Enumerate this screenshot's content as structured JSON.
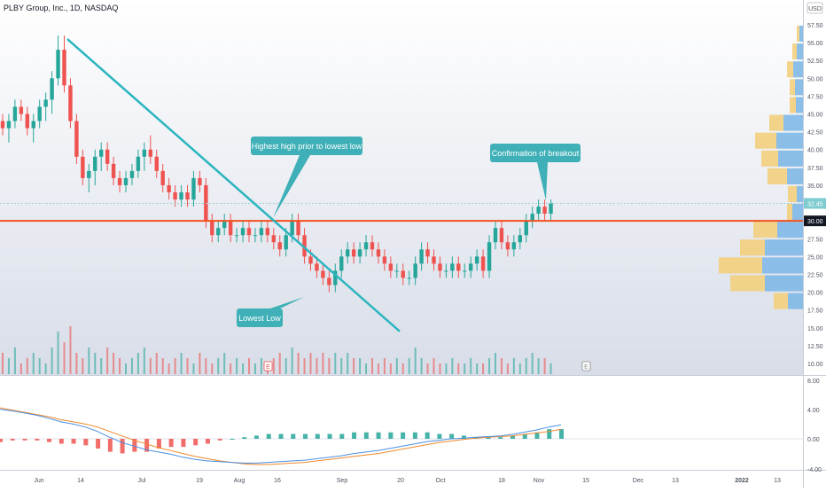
{
  "header": {
    "title": "PLBY Group, Inc., 1D, NASDAQ",
    "currency": "USD"
  },
  "colors": {
    "up": "#26a69a",
    "down": "#ef5350",
    "trendline": "#2bb5bf",
    "horizontal_line": "#f4511e",
    "current_price_line": "#9fd4d7",
    "callout_bg": "#3fb0b7",
    "vp_up": "#7fb8e6",
    "vp_down": "#f3cf7d",
    "macd_line": "#4a90e2",
    "signal_line": "#f0892b"
  },
  "price_axis": {
    "labels": [
      "57.50",
      "55.00",
      "52.50",
      "50.00",
      "47.50",
      "45.00",
      "42.50",
      "40.00",
      "37.50",
      "35.00",
      "32.50",
      "30.00",
      "27.50",
      "25.00",
      "22.50",
      "20.00",
      "17.50",
      "15.00",
      "12.50",
      "10.00"
    ],
    "current_price": "32.45",
    "level_price": "30.00"
  },
  "indicator_axis": {
    "labels": [
      "8.00",
      "4.00",
      "0.00",
      "-4.00"
    ]
  },
  "time_axis": {
    "labels": [
      "Jun",
      "14",
      "Jul",
      "19",
      "Aug",
      "16",
      "Sep",
      "20",
      "Oct",
      "18",
      "Nov",
      "15",
      "Dec",
      "13",
      "2022",
      "13"
    ]
  },
  "annotations": {
    "high_callout": "Highest high prior to lowest low",
    "low_callout": "Lowest Low",
    "breakout_callout": "Confirmation of breakout"
  },
  "markers": {
    "earnings": "E",
    "dividend": "E"
  },
  "chart_data": {
    "type": "candlestick",
    "title": "PLBY Group, Inc., 1D, NASDAQ",
    "y_unit": "USD",
    "ylim": [
      10,
      58
    ],
    "trendline": {
      "start": {
        "date": "2021-06-10",
        "price": 55.5
      },
      "end": {
        "date": "2021-09-16",
        "price": 14.5
      }
    },
    "horizontal_level": 30.0,
    "current_price": 32.45,
    "candles": [
      [
        44,
        45,
        42,
        43
      ],
      [
        43,
        45,
        41,
        44
      ],
      [
        44,
        47,
        43,
        46
      ],
      [
        46,
        47,
        44,
        45
      ],
      [
        45,
        46,
        42,
        43
      ],
      [
        43,
        45,
        41,
        44
      ],
      [
        44,
        47,
        43,
        46
      ],
      [
        46,
        48,
        44,
        47
      ],
      [
        47,
        51,
        45,
        50
      ],
      [
        50,
        56,
        49,
        54
      ],
      [
        54,
        56,
        48,
        49
      ],
      [
        49,
        50,
        43,
        44
      ],
      [
        44,
        45,
        38,
        39
      ],
      [
        39,
        40,
        35,
        36
      ],
      [
        36,
        38,
        34,
        37
      ],
      [
        37,
        40,
        35,
        39
      ],
      [
        39,
        41,
        37,
        40
      ],
      [
        40,
        41,
        37,
        38
      ],
      [
        38,
        39,
        35,
        36
      ],
      [
        36,
        37,
        34,
        35
      ],
      [
        35,
        37,
        34,
        36
      ],
      [
        36,
        38,
        35,
        37
      ],
      [
        37,
        40,
        36,
        39
      ],
      [
        39,
        41,
        37,
        40
      ],
      [
        40,
        42,
        38,
        39
      ],
      [
        39,
        40,
        36,
        37
      ],
      [
        37,
        38,
        34,
        35
      ],
      [
        35,
        36,
        33,
        34
      ],
      [
        34,
        35,
        32,
        33
      ],
      [
        33,
        35,
        32,
        34
      ],
      [
        34,
        35,
        32,
        33
      ],
      [
        33,
        37,
        32,
        36
      ],
      [
        36,
        37,
        34,
        35
      ],
      [
        35,
        36,
        29,
        30
      ],
      [
        30,
        31,
        27,
        28
      ],
      [
        28,
        30,
        27,
        29
      ],
      [
        29,
        31,
        28,
        30
      ],
      [
        30,
        31,
        27,
        28
      ],
      [
        28,
        29,
        27,
        28
      ],
      [
        28,
        30,
        27,
        29
      ],
      [
        29,
        30,
        27,
        28
      ],
      [
        28,
        29,
        27,
        28
      ],
      [
        28,
        30,
        27,
        29
      ],
      [
        29,
        30,
        27,
        28
      ],
      [
        28,
        29,
        26,
        27
      ],
      [
        27,
        28,
        25,
        26
      ],
      [
        26,
        29,
        25,
        28
      ],
      [
        28,
        31,
        27,
        30
      ],
      [
        30,
        31,
        27,
        28
      ],
      [
        28,
        29,
        24,
        25
      ],
      [
        25,
        26,
        23,
        24
      ],
      [
        24,
        25,
        22,
        23
      ],
      [
        23,
        24,
        21,
        22
      ],
      [
        22,
        23,
        20,
        21
      ],
      [
        21,
        24,
        20,
        23
      ],
      [
        23,
        26,
        22,
        25
      ],
      [
        25,
        27,
        24,
        26
      ],
      [
        26,
        27,
        24,
        25
      ],
      [
        25,
        27,
        24,
        26
      ],
      [
        26,
        28,
        25,
        27
      ],
      [
        27,
        28,
        25,
        26
      ],
      [
        26,
        27,
        24,
        25
      ],
      [
        25,
        26,
        23,
        24
      ],
      [
        24,
        25,
        22,
        23
      ],
      [
        23,
        24,
        22,
        23
      ],
      [
        23,
        24,
        21,
        22
      ],
      [
        22,
        23,
        21,
        22
      ],
      [
        22,
        25,
        21,
        24
      ],
      [
        24,
        27,
        23,
        26
      ],
      [
        26,
        27,
        24,
        25
      ],
      [
        25,
        26,
        23,
        24
      ],
      [
        24,
        25,
        22,
        23
      ],
      [
        23,
        24,
        22,
        23
      ],
      [
        23,
        25,
        22,
        24
      ],
      [
        24,
        25,
        22,
        23
      ],
      [
        23,
        24,
        22,
        23
      ],
      [
        23,
        25,
        22,
        24
      ],
      [
        24,
        26,
        23,
        25
      ],
      [
        25,
        26,
        22,
        23
      ],
      [
        23,
        28,
        22,
        27
      ],
      [
        27,
        30,
        26,
        29
      ],
      [
        29,
        30,
        26,
        27
      ],
      [
        27,
        28,
        25,
        26
      ],
      [
        26,
        28,
        25,
        27
      ],
      [
        27,
        29,
        26,
        28
      ],
      [
        28,
        31,
        27,
        30
      ],
      [
        30,
        32,
        29,
        31
      ],
      [
        31,
        33,
        30,
        32
      ],
      [
        32,
        33,
        30,
        31
      ],
      [
        31,
        33,
        30,
        32.5
      ]
    ],
    "volume": [
      4,
      3,
      5,
      2,
      3,
      4,
      3,
      2,
      5,
      8,
      6,
      9,
      4,
      3,
      5,
      4,
      3,
      5,
      4,
      3,
      2,
      3,
      4,
      5,
      3,
      4,
      3,
      2,
      3,
      4,
      3,
      2,
      4,
      3,
      2,
      3,
      4,
      2,
      3,
      2,
      3,
      2,
      3,
      2,
      3,
      4,
      3,
      5,
      4,
      3,
      4,
      3,
      4,
      3,
      4,
      3,
      4,
      3,
      3,
      2,
      3,
      2,
      3,
      2,
      3,
      2,
      3,
      5,
      3,
      2,
      3,
      2,
      2,
      3,
      2,
      2,
      3,
      2,
      2,
      3,
      4,
      3,
      2,
      3,
      2,
      3,
      4,
      3,
      3,
      2
    ],
    "macd": {
      "macd_line": [
        4.0,
        3.8,
        3.5,
        3.2,
        2.8,
        2.3,
        2.0,
        1.6,
        1.0,
        0.2,
        -0.5,
        -1.0,
        -1.5,
        -1.8,
        -2.1,
        -2.5,
        -2.8,
        -3.0,
        -3.1,
        -3.2,
        -3.3,
        -3.3,
        -3.2,
        -3.1,
        -3.0,
        -2.9,
        -2.7,
        -2.5,
        -2.3,
        -2.0,
        -1.8,
        -1.6,
        -1.3,
        -1.0,
        -0.7,
        -0.4,
        -0.2,
        0.0,
        0.1,
        0.2,
        0.3,
        0.4,
        0.6,
        0.9,
        1.2,
        1.6,
        1.9
      ],
      "signal_line": [
        4.2,
        3.9,
        3.6,
        3.3,
        3.0,
        2.6,
        2.3,
        2.0,
        1.6,
        1.0,
        0.4,
        -0.2,
        -0.7,
        -1.2,
        -1.6,
        -2.0,
        -2.4,
        -2.7,
        -3.0,
        -3.2,
        -3.4,
        -3.5,
        -3.5,
        -3.4,
        -3.3,
        -3.2,
        -3.0,
        -2.8,
        -2.6,
        -2.4,
        -2.2,
        -2.0,
        -1.7,
        -1.4,
        -1.1,
        -0.8,
        -0.5,
        -0.3,
        -0.1,
        0.1,
        0.2,
        0.3,
        0.4,
        0.6,
        0.8,
        1.0,
        1.3
      ],
      "ylim": [
        -4.5,
        8.5
      ]
    },
    "volume_profile": [
      {
        "price": 56.25,
        "up": 8,
        "down": 6
      },
      {
        "price": 53.75,
        "up": 14,
        "down": 10
      },
      {
        "price": 51.25,
        "up": 22,
        "down": 14
      },
      {
        "price": 48.75,
        "up": 18,
        "down": 12
      },
      {
        "price": 46.25,
        "up": 16,
        "down": 14
      },
      {
        "price": 43.75,
        "up": 44,
        "down": 32
      },
      {
        "price": 41.25,
        "up": 60,
        "down": 48
      },
      {
        "price": 38.75,
        "up": 56,
        "down": 38
      },
      {
        "price": 36.25,
        "up": 36,
        "down": 44
      },
      {
        "price": 33.75,
        "up": 14,
        "down": 20
      },
      {
        "price": 31.25,
        "up": 24,
        "down": 12
      },
      {
        "price": 28.75,
        "up": 58,
        "down": 54
      },
      {
        "price": 26.25,
        "up": 86,
        "down": 56
      },
      {
        "price": 23.75,
        "up": 92,
        "down": 98
      },
      {
        "price": 21.25,
        "up": 86,
        "down": 78
      },
      {
        "price": 18.75,
        "up": 34,
        "down": 32
      }
    ]
  }
}
